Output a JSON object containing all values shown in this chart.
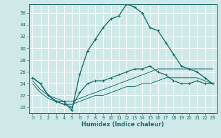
{
  "xlabel": "Humidex (Indice chaleur)",
  "xlim": [
    -0.5,
    23.5
  ],
  "ylim": [
    19,
    37.5
  ],
  "yticks": [
    20,
    22,
    24,
    26,
    28,
    30,
    32,
    34,
    36
  ],
  "xticks": [
    0,
    1,
    2,
    3,
    4,
    5,
    6,
    7,
    8,
    9,
    10,
    11,
    12,
    13,
    14,
    15,
    16,
    17,
    18,
    19,
    20,
    21,
    22,
    23
  ],
  "bg_color": "#cfe8e8",
  "grid_color": "#ffffff",
  "line_color": "#1a6b6b",
  "line1": [
    25.0,
    24.0,
    22.0,
    21.0,
    21.0,
    19.5,
    25.5,
    29.5,
    31.5,
    33.5,
    35.0,
    35.5,
    37.5,
    37.0,
    36.0,
    33.5,
    33.0,
    31.0,
    29.0,
    27.0,
    26.5,
    26.0,
    25.0,
    24.0
  ],
  "line2": [
    25.0,
    24.0,
    22.0,
    21.0,
    20.5,
    20.0,
    22.5,
    24.0,
    24.5,
    24.5,
    25.0,
    25.5,
    26.0,
    26.5,
    26.5,
    27.0,
    26.0,
    25.5,
    24.5,
    24.0,
    24.0,
    24.5,
    24.0,
    24.0
  ],
  "line3": [
    24.5,
    23.0,
    22.0,
    21.5,
    21.0,
    21.0,
    21.5,
    22.0,
    22.5,
    23.0,
    23.5,
    24.0,
    24.5,
    25.0,
    25.5,
    26.0,
    26.5,
    26.5,
    26.5,
    26.5,
    26.5,
    26.5,
    26.5,
    26.5
  ],
  "line4": [
    24.0,
    22.5,
    21.5,
    21.0,
    20.5,
    20.5,
    21.0,
    21.5,
    22.0,
    22.0,
    22.5,
    23.0,
    23.5,
    23.5,
    24.0,
    24.0,
    24.5,
    25.0,
    25.0,
    25.0,
    25.0,
    25.0,
    24.5,
    24.0
  ]
}
